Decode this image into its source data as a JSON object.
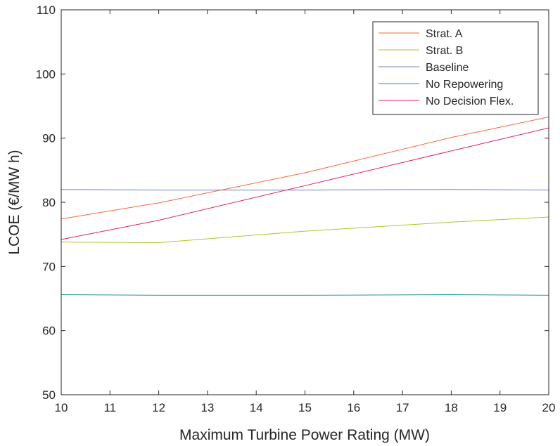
{
  "chart_data": {
    "type": "line",
    "title": "",
    "xlabel": "Maximum Turbine Power Rating (MW)",
    "ylabel": "LCOE  (€/MW h)",
    "xlim": [
      10,
      20
    ],
    "ylim": [
      50,
      110
    ],
    "xticks": [
      10,
      11,
      12,
      13,
      14,
      15,
      16,
      17,
      18,
      19,
      20
    ],
    "yticks": [
      50,
      60,
      70,
      80,
      90,
      100,
      110
    ],
    "x": [
      10,
      12,
      15,
      18,
      20
    ],
    "grid": false,
    "legend_position": "top-right",
    "series": [
      {
        "name": "Strat. A",
        "color": "#f4693a",
        "values": [
          77.4,
          79.9,
          84.6,
          90.1,
          93.3
        ]
      },
      {
        "name": "Strat. B",
        "color": "#a8c82a",
        "values": [
          73.8,
          73.7,
          75.5,
          76.9,
          77.7
        ]
      },
      {
        "name": "Baseline",
        "color": "#6b80c0",
        "values": [
          82.0,
          81.9,
          81.9,
          82.0,
          81.9
        ]
      },
      {
        "name": "No Repowering",
        "color": "#1a9a9a",
        "values": [
          65.6,
          65.5,
          65.5,
          65.6,
          65.5
        ]
      },
      {
        "name": "No Decision Flex.",
        "color": "#e0206a",
        "values": [
          74.2,
          77.2,
          82.6,
          88.0,
          91.6
        ]
      }
    ]
  }
}
